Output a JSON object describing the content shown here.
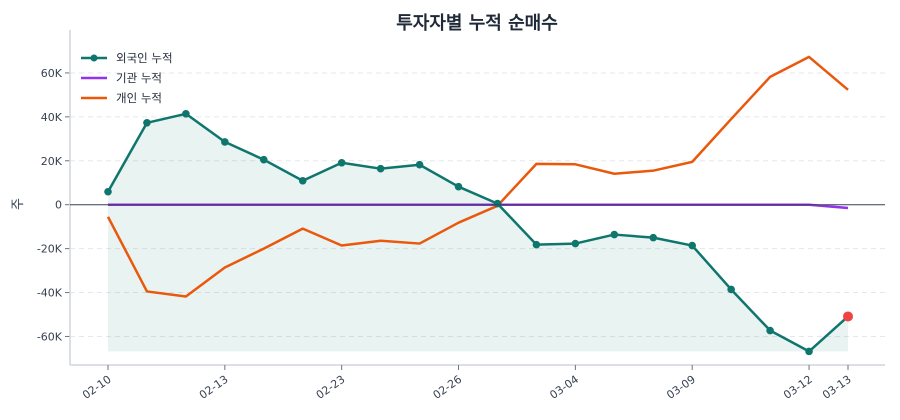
{
  "chart_data": {
    "type": "line",
    "title": "투자자별 누적 순매수",
    "xlabel": "",
    "ylabel": "주",
    "categories": [
      "02-10",
      "",
      "",
      "02-13",
      "",
      "",
      "02-23",
      "",
      "",
      "02-26",
      "",
      "",
      "03-04",
      "",
      "",
      "03-09",
      "",
      "",
      "03-12",
      "03-13"
    ],
    "ylim": [
      -73000,
      75000
    ],
    "yticks": [
      -60000,
      -40000,
      -20000,
      0,
      20000,
      40000,
      60000
    ],
    "ytick_labels": [
      "-60K",
      "-40K",
      "-20K",
      "0",
      "20K",
      "40K",
      "60K"
    ],
    "grid": true,
    "legend_position": "top-left",
    "series": [
      {
        "name": "외국인 누적",
        "color": "#0f766e",
        "markers": true,
        "fill": true,
        "values": [
          5900,
          37300,
          41400,
          28600,
          20500,
          10900,
          19100,
          16400,
          18200,
          8200,
          500,
          -18200,
          -17700,
          -13600,
          -15000,
          -18600,
          -38600,
          -57300,
          -66800,
          -50900
        ],
        "last_point_color": "#ef4444"
      },
      {
        "name": "기관 누적",
        "color": "#9333ea",
        "markers": false,
        "values": [
          0,
          0,
          0,
          0,
          0,
          0,
          0,
          0,
          0,
          0,
          0,
          0,
          0,
          0,
          0,
          0,
          0,
          0,
          0,
          -1500
        ]
      },
      {
        "name": "개인 누적",
        "color": "#ea580c",
        "markers": false,
        "values": [
          -5500,
          -39500,
          -41800,
          -28600,
          -20000,
          -10900,
          -18600,
          -16400,
          -17700,
          -8200,
          -500,
          18600,
          18400,
          14100,
          15500,
          19500,
          39000,
          58200,
          67300,
          52300
        ]
      }
    ]
  }
}
